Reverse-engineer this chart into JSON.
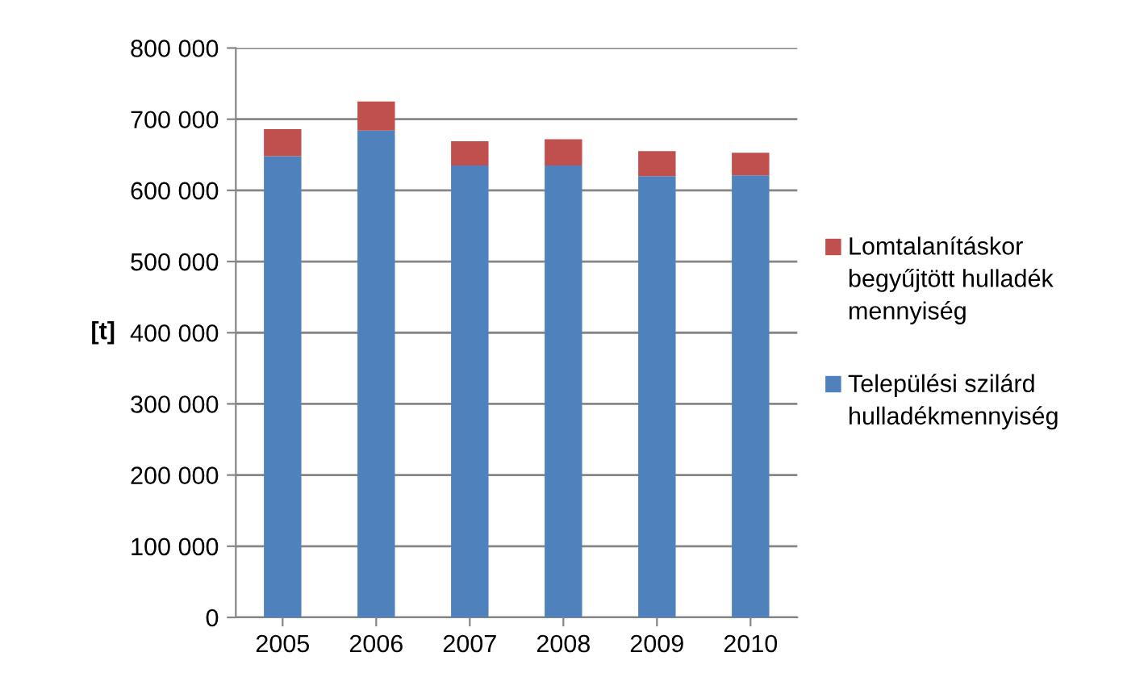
{
  "chart_data": {
    "type": "bar",
    "stacked": true,
    "ylabel": "[t]",
    "categories": [
      "2005",
      "2006",
      "2007",
      "2008",
      "2009",
      "2010"
    ],
    "series": [
      {
        "name": "Települési szilárd hulladékmennyiség",
        "color": "#4f81bd",
        "values": [
          648000,
          684000,
          635000,
          635000,
          620000,
          621000
        ]
      },
      {
        "name": "Lomtalanításkor begyűjtött hulladék mennyiség",
        "color": "#c0504d",
        "values": [
          38000,
          41000,
          34000,
          37000,
          35000,
          32000
        ]
      }
    ],
    "ylim": [
      0,
      800000
    ],
    "yticks": [
      {
        "value": 0,
        "label": "0"
      },
      {
        "value": 100000,
        "label": "100 000"
      },
      {
        "value": 200000,
        "label": "200 000"
      },
      {
        "value": 300000,
        "label": "300 000"
      },
      {
        "value": 400000,
        "label": "400 000"
      },
      {
        "value": 500000,
        "label": "500 000"
      },
      {
        "value": 600000,
        "label": "600 000"
      },
      {
        "value": 700000,
        "label": "700 000"
      },
      {
        "value": 800000,
        "label": "800 000"
      }
    ],
    "grid": "y",
    "legend": "right"
  }
}
